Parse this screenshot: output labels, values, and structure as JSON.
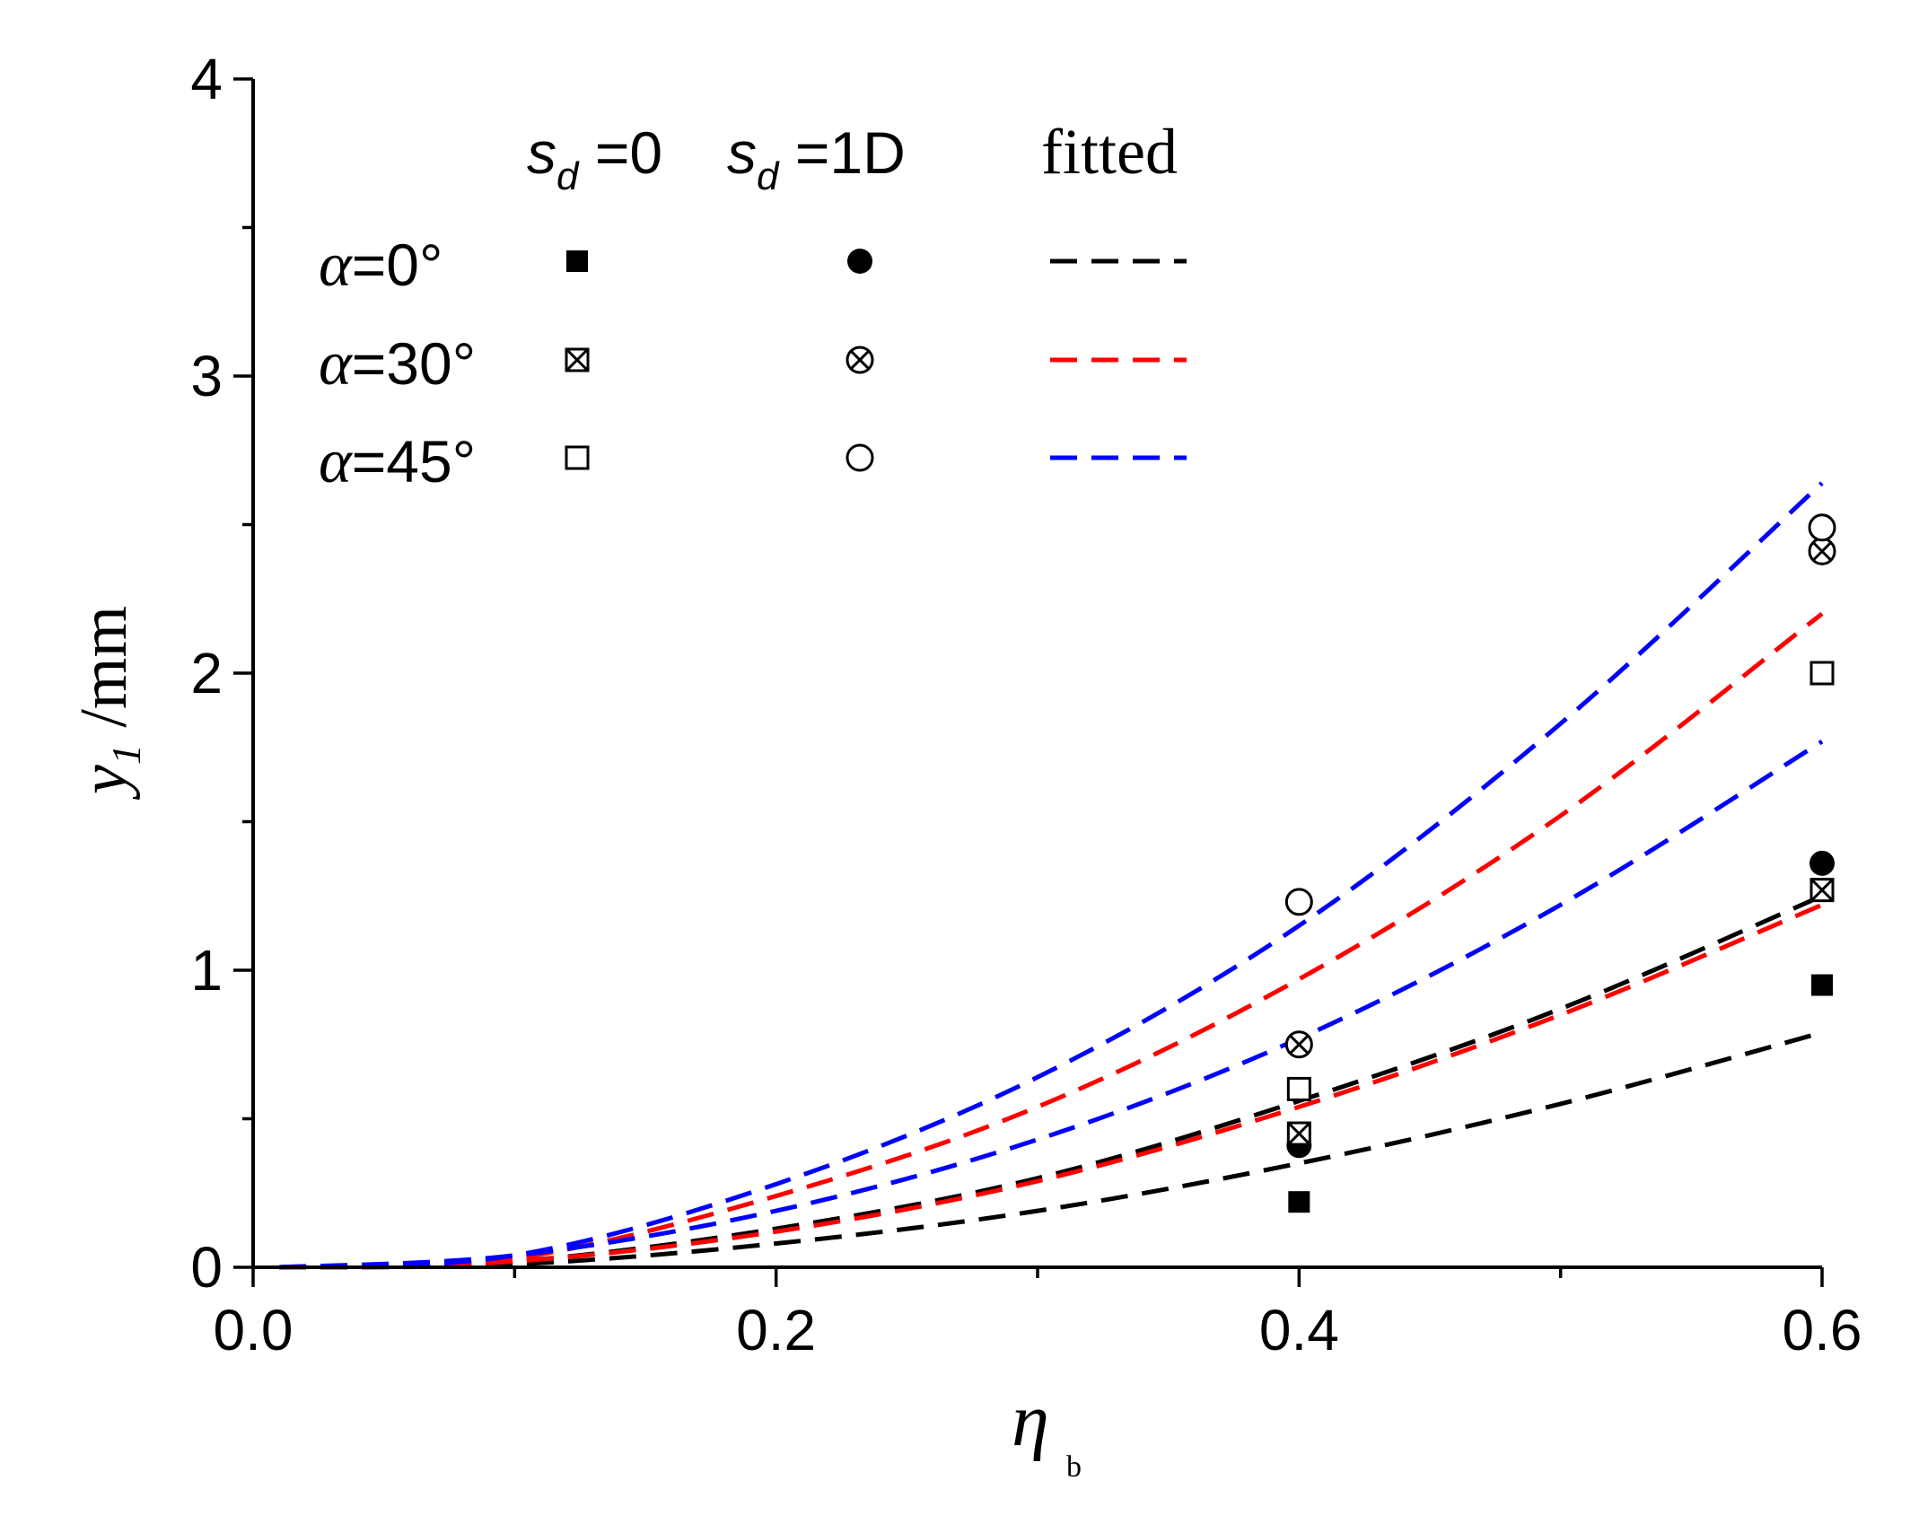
{
  "chart_data": {
    "type": "scatter",
    "xlabel": {
      "main": "η",
      "sub": "b"
    },
    "ylabel": {
      "main": "y",
      "sub": "1",
      "unit": " /mm"
    },
    "xlim": [
      0.0,
      0.6
    ],
    "ylim": [
      0,
      4
    ],
    "x_ticks": [
      "0.0",
      "0.2",
      "0.4",
      "0.6"
    ],
    "y_ticks": [
      "0",
      "1",
      "2",
      "3",
      "4"
    ],
    "legend": {
      "headers": {
        "sd0": {
          "var": "s",
          "sub": "d",
          "rest": " =0"
        },
        "sd1": {
          "var": "s",
          "sub": "d",
          "rest": " =1D"
        },
        "fitted": "fitted"
      },
      "rows": [
        {
          "alpha": "α",
          "rest": "=0°",
          "color": "#000000"
        },
        {
          "alpha": "α",
          "rest": "=30°",
          "color": "#ff0000"
        },
        {
          "alpha": "α",
          "rest": "=45°",
          "color": "#0000ff"
        }
      ]
    },
    "points": [
      {
        "series": "α=0°, sd=0",
        "marker": "filled-square",
        "x": [
          0.4,
          0.6
        ],
        "y": [
          0.22,
          0.95
        ]
      },
      {
        "series": "α=0°, sd=1D",
        "marker": "filled-circle",
        "x": [
          0.4,
          0.6
        ],
        "y": [
          0.41,
          1.36
        ]
      },
      {
        "series": "α=30°, sd=0",
        "marker": "crossed-square",
        "x": [
          0.4,
          0.6
        ],
        "y": [
          0.45,
          1.27
        ]
      },
      {
        "series": "α=30°, sd=1D",
        "marker": "crossed-circle",
        "x": [
          0.4,
          0.6
        ],
        "y": [
          0.75,
          2.41
        ]
      },
      {
        "series": "α=45°, sd=0",
        "marker": "open-square",
        "x": [
          0.4,
          0.6
        ],
        "y": [
          0.6,
          2.0
        ]
      },
      {
        "series": "α=45°, sd=1D",
        "marker": "open-circle",
        "x": [
          0.4,
          0.6
        ],
        "y": [
          1.23,
          2.49
        ]
      }
    ],
    "fitted_curves": [
      {
        "series": "α=0° fit 1",
        "color": "#000000",
        "x": [
          0.01,
          0.1,
          0.2,
          0.3,
          0.4,
          0.5,
          0.6
        ],
        "y": [
          0.0,
          0.01,
          0.08,
          0.19,
          0.35,
          0.55,
          0.79
        ]
      },
      {
        "series": "α=0° fit 2",
        "color": "#000000",
        "x": [
          0.01,
          0.1,
          0.2,
          0.3,
          0.4,
          0.5,
          0.6
        ],
        "y": [
          0.0,
          0.02,
          0.13,
          0.3,
          0.56,
          0.87,
          1.25
        ]
      },
      {
        "series": "α=30° fit 1",
        "color": "#ff0000",
        "x": [
          0.01,
          0.1,
          0.2,
          0.3,
          0.4,
          0.5,
          0.6
        ],
        "y": [
          0.0,
          0.02,
          0.12,
          0.29,
          0.54,
          0.85,
          1.22
        ]
      },
      {
        "series": "α=30° fit 2",
        "color": "#ff0000",
        "x": [
          0.01,
          0.1,
          0.2,
          0.3,
          0.4,
          0.5,
          0.6
        ],
        "y": [
          0.0,
          0.03,
          0.24,
          0.54,
          0.97,
          1.52,
          2.2
        ]
      },
      {
        "series": "α=45° fit 1",
        "color": "#0000ff",
        "x": [
          0.01,
          0.1,
          0.2,
          0.3,
          0.4,
          0.5,
          0.6
        ],
        "y": [
          0.0,
          0.04,
          0.19,
          0.43,
          0.77,
          1.22,
          1.77
        ]
      },
      {
        "series": "α=45° fit 2",
        "color": "#0000ff",
        "x": [
          0.01,
          0.1,
          0.2,
          0.3,
          0.4,
          0.5,
          0.6
        ],
        "y": [
          0.0,
          0.04,
          0.28,
          0.64,
          1.15,
          1.83,
          2.64
        ]
      }
    ]
  }
}
